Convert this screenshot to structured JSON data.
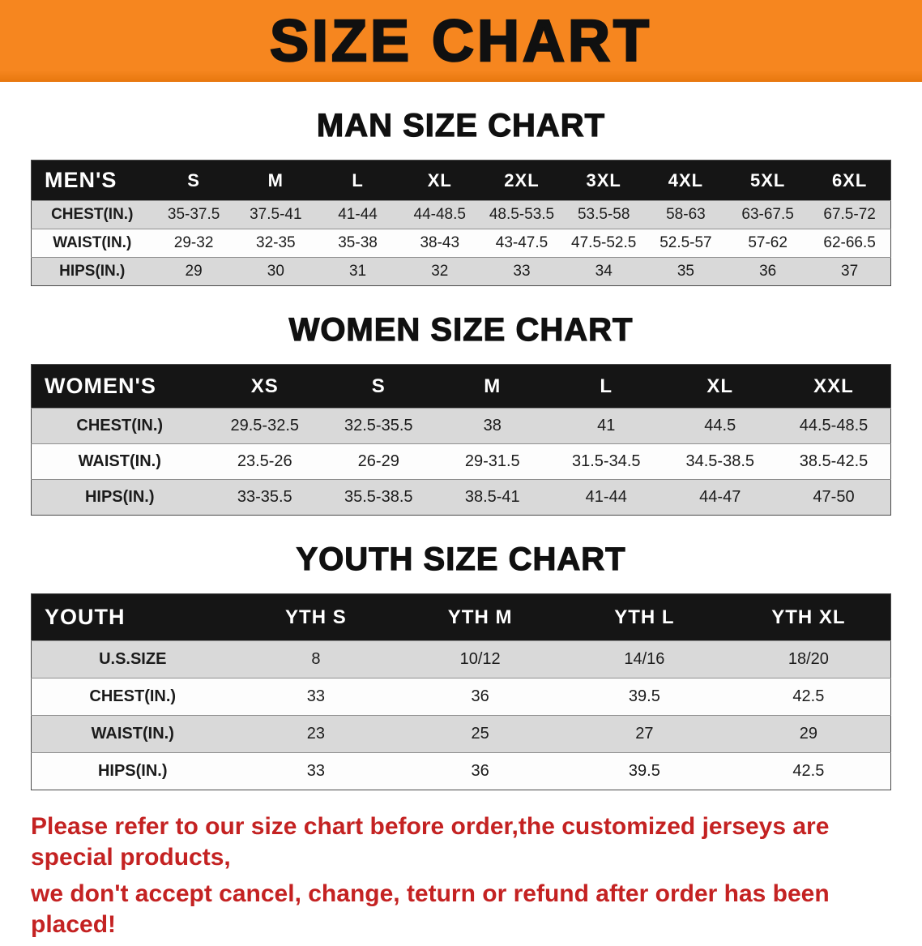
{
  "banner": {
    "title": "SIZE CHART"
  },
  "sections": [
    {
      "id": "men",
      "heading": "MAN SIZE CHART",
      "table": {
        "header": [
          "MEN'S",
          "S",
          "M",
          "L",
          "XL",
          "2XL",
          "3XL",
          "4XL",
          "5XL",
          "6XL"
        ],
        "rows": [
          [
            "CHEST(IN.)",
            "35-37.5",
            "37.5-41",
            "41-44",
            "44-48.5",
            "48.5-53.5",
            "53.5-58",
            "58-63",
            "63-67.5",
            "67.5-72"
          ],
          [
            "WAIST(IN.)",
            "29-32",
            "32-35",
            "35-38",
            "38-43",
            "43-47.5",
            "47.5-52.5",
            "52.5-57",
            "57-62",
            "62-66.5"
          ],
          [
            "HIPS(IN.)",
            "29",
            "30",
            "31",
            "32",
            "33",
            "34",
            "35",
            "36",
            "37"
          ]
        ]
      }
    },
    {
      "id": "women",
      "heading": "WOMEN SIZE CHART",
      "table": {
        "header": [
          "WOMEN'S",
          "XS",
          "S",
          "M",
          "L",
          "XL",
          "XXL"
        ],
        "rows": [
          [
            "CHEST(IN.)",
            "29.5-32.5",
            "32.5-35.5",
            "38",
            "41",
            "44.5",
            "44.5-48.5"
          ],
          [
            "WAIST(IN.)",
            "23.5-26",
            "26-29",
            "29-31.5",
            "31.5-34.5",
            "34.5-38.5",
            "38.5-42.5"
          ],
          [
            "HIPS(IN.)",
            "33-35.5",
            "35.5-38.5",
            "38.5-41",
            "41-44",
            "44-47",
            "47-50"
          ]
        ]
      }
    },
    {
      "id": "youth",
      "heading": "YOUTH SIZE CHART",
      "table": {
        "header": [
          "YOUTH",
          "YTH S",
          "YTH M",
          "YTH L",
          "YTH XL"
        ],
        "rows": [
          [
            "U.S.SIZE",
            "8",
            "10/12",
            "14/16",
            "18/20"
          ],
          [
            "CHEST(IN.)",
            "33",
            "36",
            "39.5",
            "42.5"
          ],
          [
            "WAIST(IN.)",
            "23",
            "25",
            "27",
            "29"
          ],
          [
            "HIPS(IN.)",
            "33",
            "36",
            "39.5",
            "42.5"
          ]
        ]
      }
    }
  ],
  "disclaimer": {
    "line1": "Please refer to our size chart before order,the customized jerseys are special products,",
    "line2": "we don't accept cancel, change, teturn or refund after order has been placed!"
  },
  "colors": {
    "banner_bg": "#f6861f",
    "table_header_bg": "#151515",
    "row_shaded": "#d9d9d9",
    "disclaimer_red": "#c42222"
  }
}
